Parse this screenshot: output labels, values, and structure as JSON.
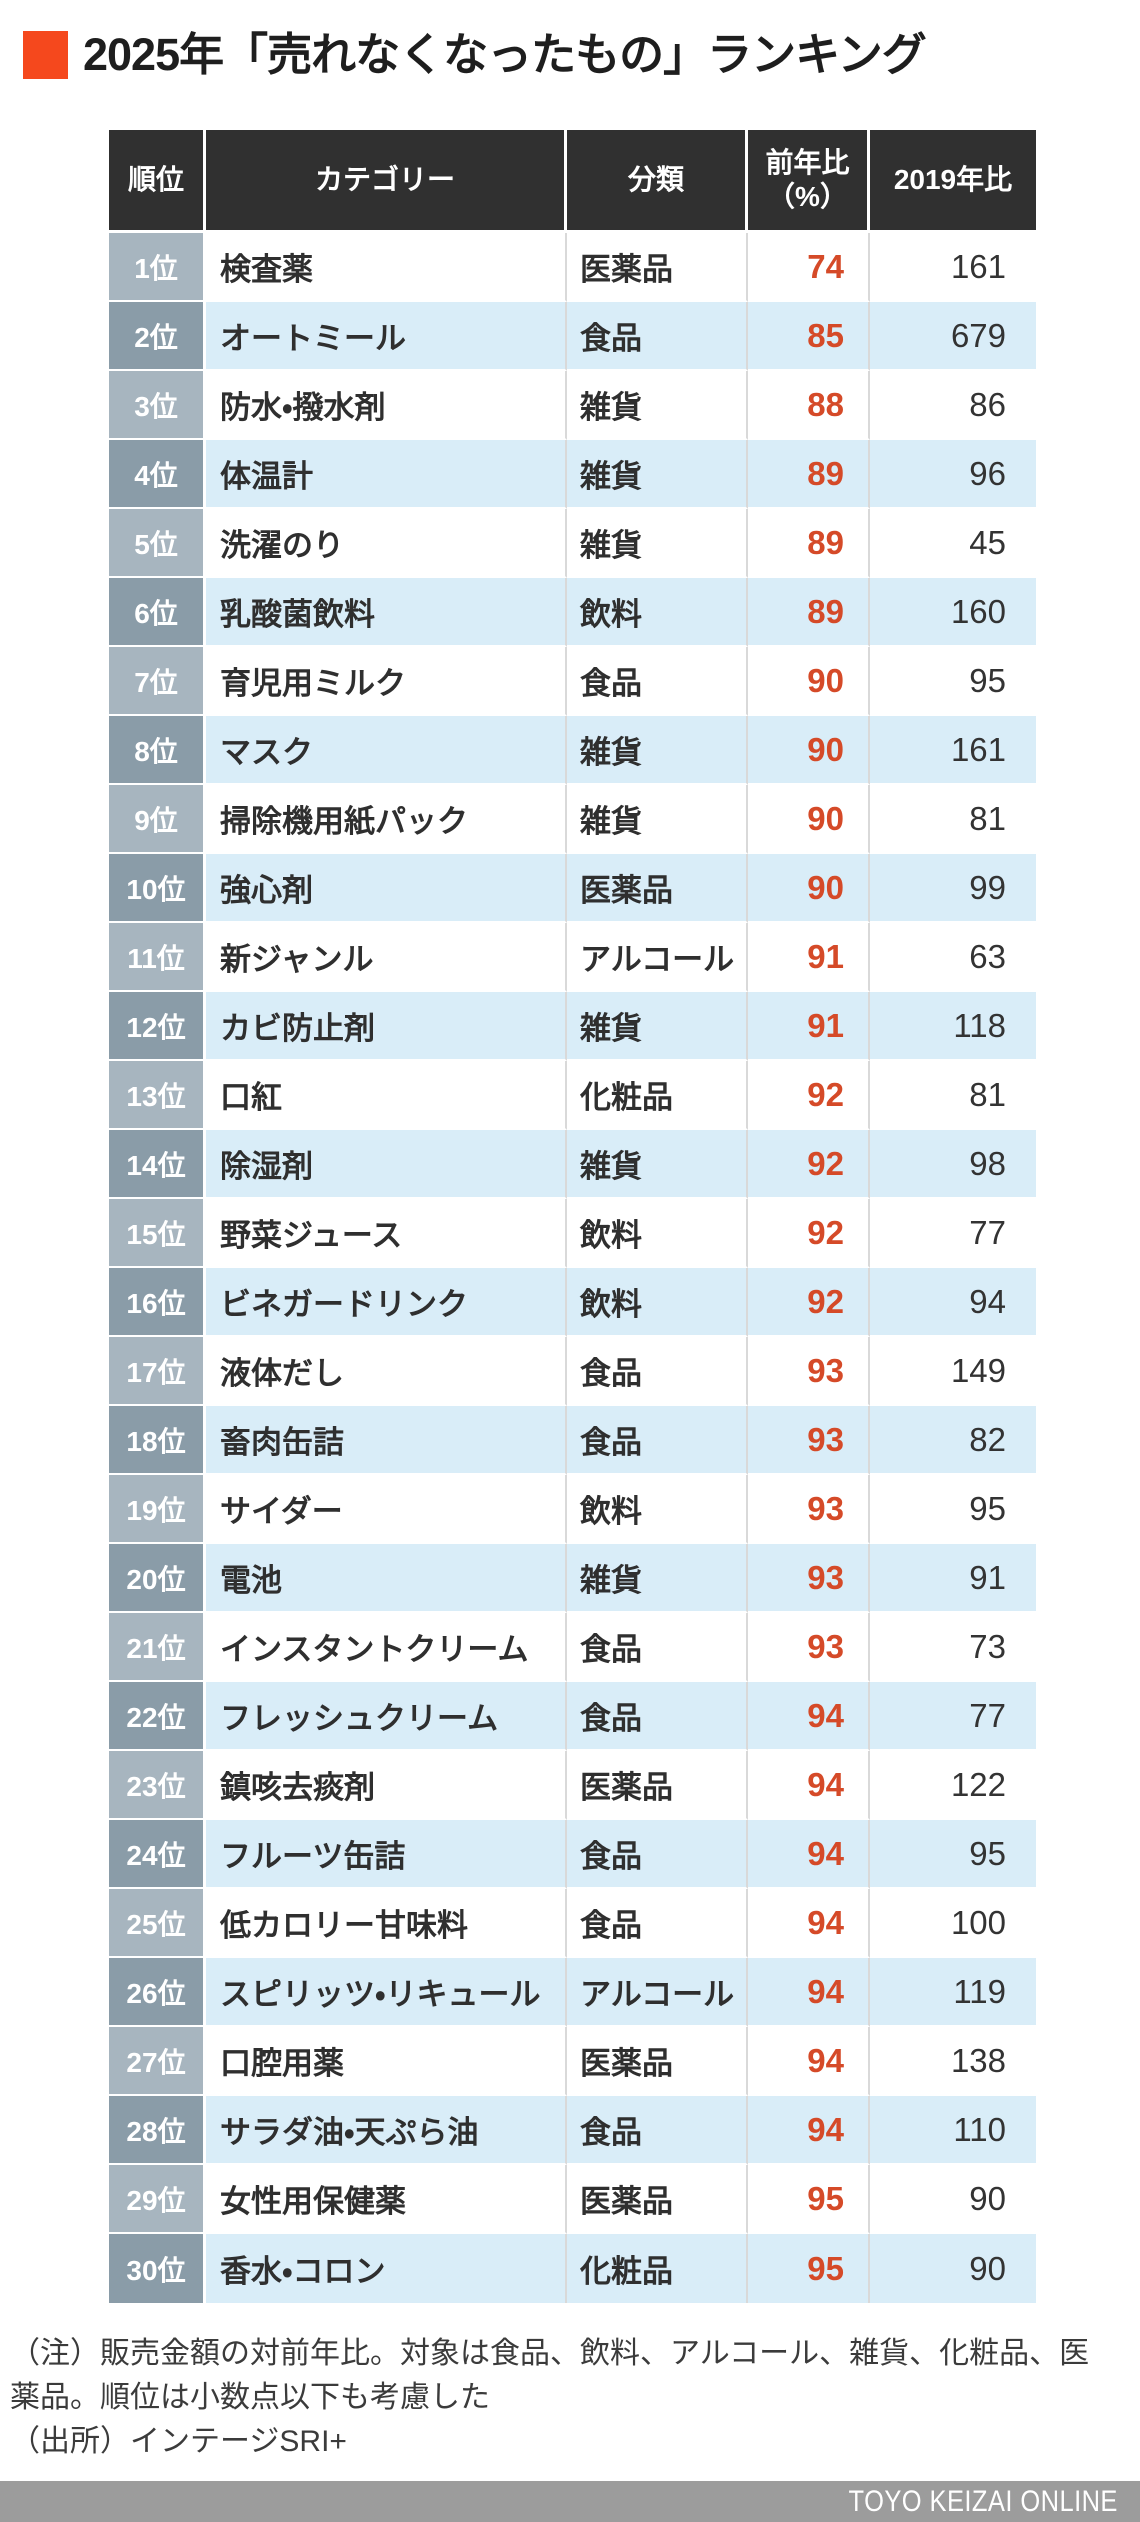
{
  "title": {
    "text": "2025年「売れなくなったもの」ランキング"
  },
  "chart_data": {
    "type": "table",
    "title": "2025年「売れなくなったもの」ランキング",
    "headers": {
      "rank": "順位",
      "category": "カテゴリー",
      "class": "分類",
      "yoy_line1": "前年比",
      "yoy_line2": "（%）",
      "vs2019": "2019年比"
    },
    "rows": [
      {
        "rank": "1位",
        "category": "検査薬",
        "class": "医薬品",
        "yoy": 74,
        "vs2019": 161
      },
      {
        "rank": "2位",
        "category": "オートミール",
        "class": "食品",
        "yoy": 85,
        "vs2019": 679
      },
      {
        "rank": "3位",
        "category": "防水・撥水剤",
        "class": "雑貨",
        "yoy": 88,
        "vs2019": 86
      },
      {
        "rank": "4位",
        "category": "体温計",
        "class": "雑貨",
        "yoy": 89,
        "vs2019": 96
      },
      {
        "rank": "5位",
        "category": "洗濯のり",
        "class": "雑貨",
        "yoy": 89,
        "vs2019": 45
      },
      {
        "rank": "6位",
        "category": "乳酸菌飲料",
        "class": "飲料",
        "yoy": 89,
        "vs2019": 160
      },
      {
        "rank": "7位",
        "category": "育児用ミルク",
        "class": "食品",
        "yoy": 90,
        "vs2019": 95
      },
      {
        "rank": "8位",
        "category": "マスク",
        "class": "雑貨",
        "yoy": 90,
        "vs2019": 161
      },
      {
        "rank": "9位",
        "category": "掃除機用紙パック",
        "class": "雑貨",
        "yoy": 90,
        "vs2019": 81
      },
      {
        "rank": "10位",
        "category": "強心剤",
        "class": "医薬品",
        "yoy": 90,
        "vs2019": 99
      },
      {
        "rank": "11位",
        "category": "新ジャンル",
        "class": "アルコール",
        "yoy": 91,
        "vs2019": 63
      },
      {
        "rank": "12位",
        "category": "カビ防止剤",
        "class": "雑貨",
        "yoy": 91,
        "vs2019": 118
      },
      {
        "rank": "13位",
        "category": "口紅",
        "class": "化粧品",
        "yoy": 92,
        "vs2019": 81
      },
      {
        "rank": "14位",
        "category": "除湿剤",
        "class": "雑貨",
        "yoy": 92,
        "vs2019": 98
      },
      {
        "rank": "15位",
        "category": "野菜ジュース",
        "class": "飲料",
        "yoy": 92,
        "vs2019": 77
      },
      {
        "rank": "16位",
        "category": "ビネガードリンク",
        "class": "飲料",
        "yoy": 92,
        "vs2019": 94
      },
      {
        "rank": "17位",
        "category": "液体だし",
        "class": "食品",
        "yoy": 93,
        "vs2019": 149
      },
      {
        "rank": "18位",
        "category": "畜肉缶詰",
        "class": "食品",
        "yoy": 93,
        "vs2019": 82
      },
      {
        "rank": "19位",
        "category": "サイダー",
        "class": "飲料",
        "yoy": 93,
        "vs2019": 95
      },
      {
        "rank": "20位",
        "category": "電池",
        "class": "雑貨",
        "yoy": 93,
        "vs2019": 91
      },
      {
        "rank": "21位",
        "category": "インスタントクリーム",
        "class": "食品",
        "yoy": 93,
        "vs2019": 73
      },
      {
        "rank": "22位",
        "category": "フレッシュクリーム",
        "class": "食品",
        "yoy": 94,
        "vs2019": 77
      },
      {
        "rank": "23位",
        "category": "鎮咳去痰剤",
        "class": "医薬品",
        "yoy": 94,
        "vs2019": 122
      },
      {
        "rank": "24位",
        "category": "フルーツ缶詰",
        "class": "食品",
        "yoy": 94,
        "vs2019": 95
      },
      {
        "rank": "25位",
        "category": "低カロリー甘味料",
        "class": "食品",
        "yoy": 94,
        "vs2019": 100
      },
      {
        "rank": "26位",
        "category": "スピリッツ・リキュール",
        "class": "アルコール",
        "yoy": 94,
        "vs2019": 119
      },
      {
        "rank": "27位",
        "category": "口腔用薬",
        "class": "医薬品",
        "yoy": 94,
        "vs2019": 138
      },
      {
        "rank": "28位",
        "category": "サラダ油・天ぷら油",
        "class": "食品",
        "yoy": 94,
        "vs2019": 110
      },
      {
        "rank": "29位",
        "category": "女性用保健薬",
        "class": "医薬品",
        "yoy": 95,
        "vs2019": 90
      },
      {
        "rank": "30位",
        "category": "香水・コロン",
        "class": "化粧品",
        "yoy": 95,
        "vs2019": 90
      }
    ]
  },
  "notes": {
    "note": "（注）販売金額の対前年比。対象は食品、飲料、アルコール、雑貨、化粧品、医薬品。順位は小数点以下も考慮した",
    "source": "（出所）インテージSRI+"
  },
  "footer": {
    "brand": "TOYO KEIZAI ONLINE"
  },
  "colors": {
    "accent": "#f5481d",
    "header-bg": "#303030",
    "row-alt-bg": "#d9edf8",
    "rank-odd-bg": "#a7b5bf",
    "rank-even-bg": "#8a9ca8",
    "negative-number": "#d54a28",
    "footer-bar-bg": "#9c9c9c"
  }
}
